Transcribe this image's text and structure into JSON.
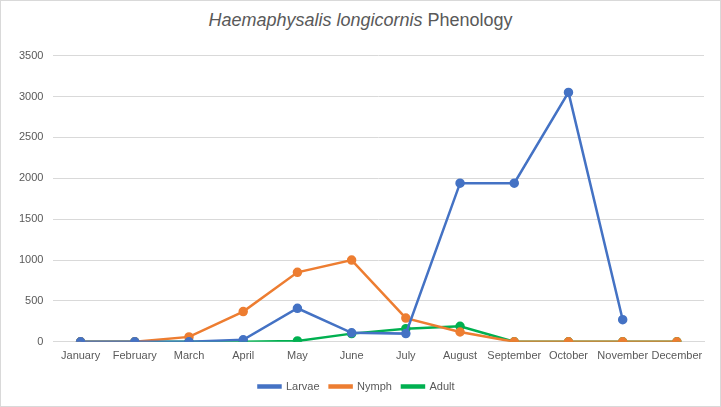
{
  "chart_data": {
    "type": "line",
    "title": "Haemaphysalis longicornis Phenology",
    "categories": [
      "January",
      "February",
      "March",
      "April",
      "May",
      "June",
      "July",
      "August",
      "September",
      "October",
      "November",
      "December"
    ],
    "series": [
      {
        "name": "Larvae",
        "color": "#4472c4",
        "values": [
          0,
          0,
          0,
          25,
          410,
          110,
          100,
          1940,
          1940,
          3050,
          270,
          null
        ]
      },
      {
        "name": "Nymph",
        "color": "#ed7d31",
        "values": [
          0,
          0,
          60,
          370,
          850,
          1000,
          290,
          120,
          0,
          0,
          0,
          0
        ]
      },
      {
        "name": "Adult",
        "color": "#00b050",
        "values": [
          0,
          0,
          0,
          0,
          10,
          100,
          160,
          190,
          0,
          0,
          0,
          0
        ]
      }
    ],
    "ylim": [
      0,
      3500
    ],
    "yticks": [
      0,
      500,
      1000,
      1500,
      2000,
      2500,
      3000,
      3500
    ],
    "grid": true,
    "legend": "bottom",
    "marker": "circle"
  }
}
